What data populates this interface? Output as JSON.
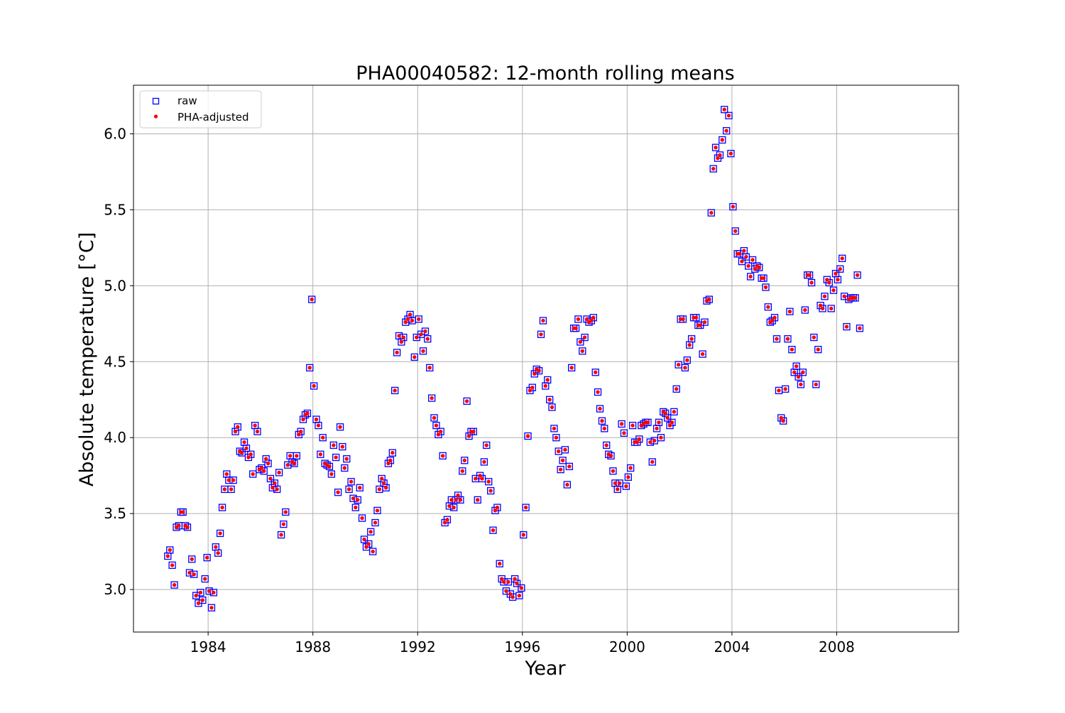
{
  "chart_data": {
    "type": "scatter",
    "title": "PHA00040582: 12-month rolling means",
    "xlabel": "Year",
    "ylabel": "Absolute temperature [°C]",
    "xlim": [
      1981.15,
      2012.65
    ],
    "ylim": [
      2.72,
      6.32
    ],
    "xticks": [
      1984,
      1988,
      1992,
      1996,
      2000,
      2004,
      2008
    ],
    "yticks": [
      3.0,
      3.5,
      4.0,
      4.5,
      5.0,
      5.5,
      6.0
    ],
    "xtick_labels": [
      "1984",
      "1988",
      "1992",
      "1996",
      "2000",
      "2004",
      "2008"
    ],
    "ytick_labels": [
      "3.0",
      "3.5",
      "4.0",
      "4.5",
      "5.0",
      "5.5",
      "6.0"
    ],
    "grid": true,
    "legend_position": "upper-left",
    "series": [
      {
        "name": "raw",
        "marker": "open-square",
        "color": "#0000ff"
      },
      {
        "name": "PHA-adjusted",
        "marker": "filled-circle",
        "color": "#ff0000"
      }
    ],
    "x": [
      1982.46,
      1982.54,
      1982.63,
      1982.71,
      1982.79,
      1982.88,
      1982.96,
      1983.04,
      1983.13,
      1983.21,
      1983.29,
      1983.38,
      1983.46,
      1983.54,
      1983.63,
      1983.71,
      1983.79,
      1983.88,
      1983.96,
      1984.04,
      1984.13,
      1984.21,
      1984.29,
      1984.38,
      1984.46,
      1984.54,
      1984.63,
      1984.71,
      1984.79,
      1984.88,
      1984.96,
      1985.04,
      1985.13,
      1985.21,
      1985.29,
      1985.38,
      1985.46,
      1985.54,
      1985.63,
      1985.71,
      1985.79,
      1985.88,
      1985.96,
      1986.04,
      1986.13,
      1986.21,
      1986.29,
      1986.38,
      1986.46,
      1986.54,
      1986.63,
      1986.71,
      1986.79,
      1986.88,
      1986.96,
      1987.04,
      1987.13,
      1987.21,
      1987.29,
      1987.38,
      1987.46,
      1987.54,
      1987.63,
      1987.71,
      1987.79,
      1987.88,
      1987.96,
      1988.04,
      1988.13,
      1988.21,
      1988.29,
      1988.38,
      1988.46,
      1988.54,
      1988.63,
      1988.71,
      1988.79,
      1988.88,
      1988.96,
      1989.04,
      1989.13,
      1989.21,
      1989.29,
      1989.38,
      1989.46,
      1989.54,
      1989.63,
      1989.71,
      1989.79,
      1989.88,
      1989.96,
      1990.04,
      1990.13,
      1990.21,
      1990.29,
      1990.38,
      1990.46,
      1990.54,
      1990.63,
      1990.71,
      1990.79,
      1990.88,
      1990.96,
      1991.04,
      1991.13,
      1991.21,
      1991.29,
      1991.38,
      1991.46,
      1991.54,
      1991.63,
      1991.71,
      1991.79,
      1991.88,
      1991.96,
      1992.04,
      1992.13,
      1992.21,
      1992.29,
      1992.38,
      1992.46,
      1992.54,
      1992.63,
      1992.71,
      1992.79,
      1992.88,
      1992.96,
      1993.04,
      1993.13,
      1993.21,
      1993.29,
      1993.38,
      1993.46,
      1993.54,
      1993.63,
      1993.71,
      1993.79,
      1993.88,
      1993.96,
      1994.04,
      1994.13,
      1994.21,
      1994.29,
      1994.38,
      1994.46,
      1994.54,
      1994.63,
      1994.71,
      1994.79,
      1994.88,
      1994.96,
      1995.04,
      1995.13,
      1995.21,
      1995.29,
      1995.38,
      1995.46,
      1995.54,
      1995.63,
      1995.71,
      1995.79,
      1995.88,
      1995.96,
      1996.04,
      1996.13,
      1996.21,
      1996.29,
      1996.38,
      1996.46,
      1996.54,
      1996.63,
      1996.71,
      1996.79,
      1996.88,
      1996.96,
      1997.04,
      1997.13,
      1997.21,
      1997.29,
      1997.38,
      1997.46,
      1997.54,
      1997.63,
      1997.71,
      1997.79,
      1997.88,
      1997.96,
      1998.04,
      1998.13,
      1998.21,
      1998.29,
      1998.38,
      1998.46,
      1998.54,
      1998.63,
      1998.71,
      1998.79,
      1998.88,
      1998.96,
      1999.04,
      1999.13,
      1999.21,
      1999.29,
      1999.38,
      1999.46,
      1999.54,
      1999.63,
      1999.71,
      1999.79,
      1999.88,
      1999.96,
      2000.04,
      2000.13,
      2000.21,
      2000.29,
      2000.38,
      2000.46,
      2000.54,
      2000.63,
      2000.71,
      2000.79,
      2000.88,
      2000.96,
      2001.04,
      2001.13,
      2001.21,
      2001.29,
      2001.38,
      2001.46,
      2001.54,
      2001.63,
      2001.71,
      2001.79,
      2001.88,
      2001.96,
      2002.04,
      2002.13,
      2002.21,
      2002.29,
      2002.38,
      2002.46,
      2002.54,
      2002.63,
      2002.71,
      2002.79,
      2002.88,
      2002.96,
      2003.04,
      2003.13,
      2003.21,
      2003.29,
      2003.38,
      2003.46,
      2003.54,
      2003.63,
      2003.71,
      2003.79,
      2003.88,
      2003.96,
      2004.04,
      2004.13,
      2004.21,
      2004.29,
      2004.38,
      2004.46,
      2004.54,
      2004.63,
      2004.71,
      2004.79,
      2004.88,
      2004.96,
      2005.04,
      2005.13,
      2005.21,
      2005.29,
      2005.38,
      2005.46,
      2005.54,
      2005.63,
      2005.71,
      2005.79,
      2005.88,
      2005.96,
      2006.04,
      2006.13,
      2006.21,
      2006.29,
      2006.38,
      2006.46,
      2006.54,
      2006.63,
      2006.71,
      2006.79,
      2006.88,
      2006.96,
      2007.04,
      2007.13,
      2007.21,
      2007.29,
      2007.38,
      2007.46,
      2007.54,
      2007.63,
      2007.71,
      2007.79,
      2007.88,
      2007.96,
      2008.04,
      2008.13,
      2008.21,
      2008.29,
      2008.38,
      2008.46,
      2008.54,
      2008.63,
      2008.71,
      2008.79,
      2008.88
    ],
    "y": [
      3.22,
      3.26,
      3.16,
      3.03,
      3.41,
      3.42,
      3.51,
      3.51,
      3.42,
      3.41,
      3.11,
      3.2,
      3.1,
      2.96,
      2.91,
      2.98,
      2.93,
      3.07,
      3.21,
      2.99,
      2.88,
      2.98,
      3.28,
      3.24,
      3.37,
      3.54,
      3.66,
      3.76,
      3.72,
      3.66,
      3.72,
      4.04,
      4.07,
      3.91,
      3.9,
      3.97,
      3.93,
      3.87,
      3.89,
      3.76,
      4.08,
      4.04,
      3.79,
      3.8,
      3.78,
      3.86,
      3.83,
      3.73,
      3.67,
      3.7,
      3.66,
      3.77,
      3.36,
      3.43,
      3.51,
      3.82,
      3.88,
      3.84,
      3.83,
      3.88,
      4.02,
      4.04,
      4.12,
      4.15,
      4.16,
      4.46,
      4.91,
      4.34,
      4.12,
      4.08,
      3.89,
      4.0,
      3.83,
      3.82,
      3.81,
      3.76,
      3.95,
      3.87,
      3.64,
      4.07,
      3.94,
      3.8,
      3.86,
      3.66,
      3.71,
      3.6,
      3.54,
      3.59,
      3.67,
      3.47,
      3.33,
      3.28,
      3.3,
      3.38,
      3.25,
      3.44,
      3.52,
      3.66,
      3.73,
      3.7,
      3.67,
      3.83,
      3.85,
      3.9,
      4.31,
      4.56,
      4.67,
      4.63,
      4.66,
      4.76,
      4.78,
      4.81,
      4.77,
      4.53,
      4.66,
      4.78,
      4.68,
      4.57,
      4.7,
      4.65,
      4.46,
      4.26,
      4.13,
      4.08,
      4.02,
      4.04,
      3.88,
      3.44,
      3.46,
      3.55,
      3.59,
      3.54,
      3.59,
      3.62,
      3.59,
      3.78,
      3.85,
      4.24,
      4.01,
      4.04,
      4.04,
      3.73,
      3.59,
      3.75,
      3.73,
      3.84,
      3.95,
      3.71,
      3.65,
      3.39,
      3.52,
      3.54,
      3.17,
      3.07,
      3.05,
      2.99,
      3.05,
      2.97,
      2.95,
      3.07,
      3.04,
      2.96,
      3.01,
      3.36,
      3.54,
      4.01,
      4.31,
      4.33,
      4.42,
      4.45,
      4.44,
      4.68,
      4.77,
      4.34,
      4.38,
      4.25,
      4.2,
      4.06,
      4.0,
      3.91,
      3.79,
      3.85,
      3.92,
      3.69,
      3.81,
      4.46,
      4.72,
      4.72,
      4.78,
      4.63,
      4.57,
      4.66,
      4.78,
      4.76,
      4.77,
      4.79,
      4.43,
      4.3,
      4.19,
      4.11,
      4.06,
      3.95,
      3.89,
      3.88,
      3.78,
      3.7,
      3.66,
      3.7,
      4.09,
      4.03,
      3.68,
      3.74,
      3.8,
      4.08,
      3.97,
      3.97,
      3.99,
      4.08,
      4.09,
      4.1,
      4.1,
      3.97,
      3.84,
      3.98,
      4.06,
      4.1,
      4.0,
      4.17,
      4.16,
      4.13,
      4.08,
      4.1,
      4.17,
      4.32,
      4.48,
      4.78,
      4.78,
      4.46,
      4.51,
      4.61,
      4.65,
      4.79,
      4.79,
      4.74,
      4.74,
      4.55,
      4.76,
      4.9,
      4.91,
      5.48,
      5.77,
      5.91,
      5.84,
      5.86,
      5.96,
      6.16,
      6.02,
      6.12,
      5.87,
      5.52,
      5.36,
      5.21,
      5.21,
      5.16,
      5.23,
      5.19,
      5.13,
      5.06,
      5.17,
      5.11,
      5.13,
      5.12,
      5.05,
      5.05,
      4.99,
      4.86,
      4.76,
      4.77,
      4.79,
      4.65,
      4.31,
      4.13,
      4.11,
      4.32,
      4.65,
      4.83,
      4.58,
      4.43,
      4.47,
      4.4,
      4.35,
      4.43,
      4.84,
      5.07,
      5.07,
      5.02,
      4.66,
      4.35,
      4.58,
      4.87,
      4.85,
      4.93,
      5.04,
      5.02,
      4.85,
      4.97,
      5.08,
      5.04,
      5.11,
      5.18,
      4.93,
      4.73,
      4.91,
      4.92,
      4.92,
      4.92,
      5.07,
      4.72
    ]
  }
}
